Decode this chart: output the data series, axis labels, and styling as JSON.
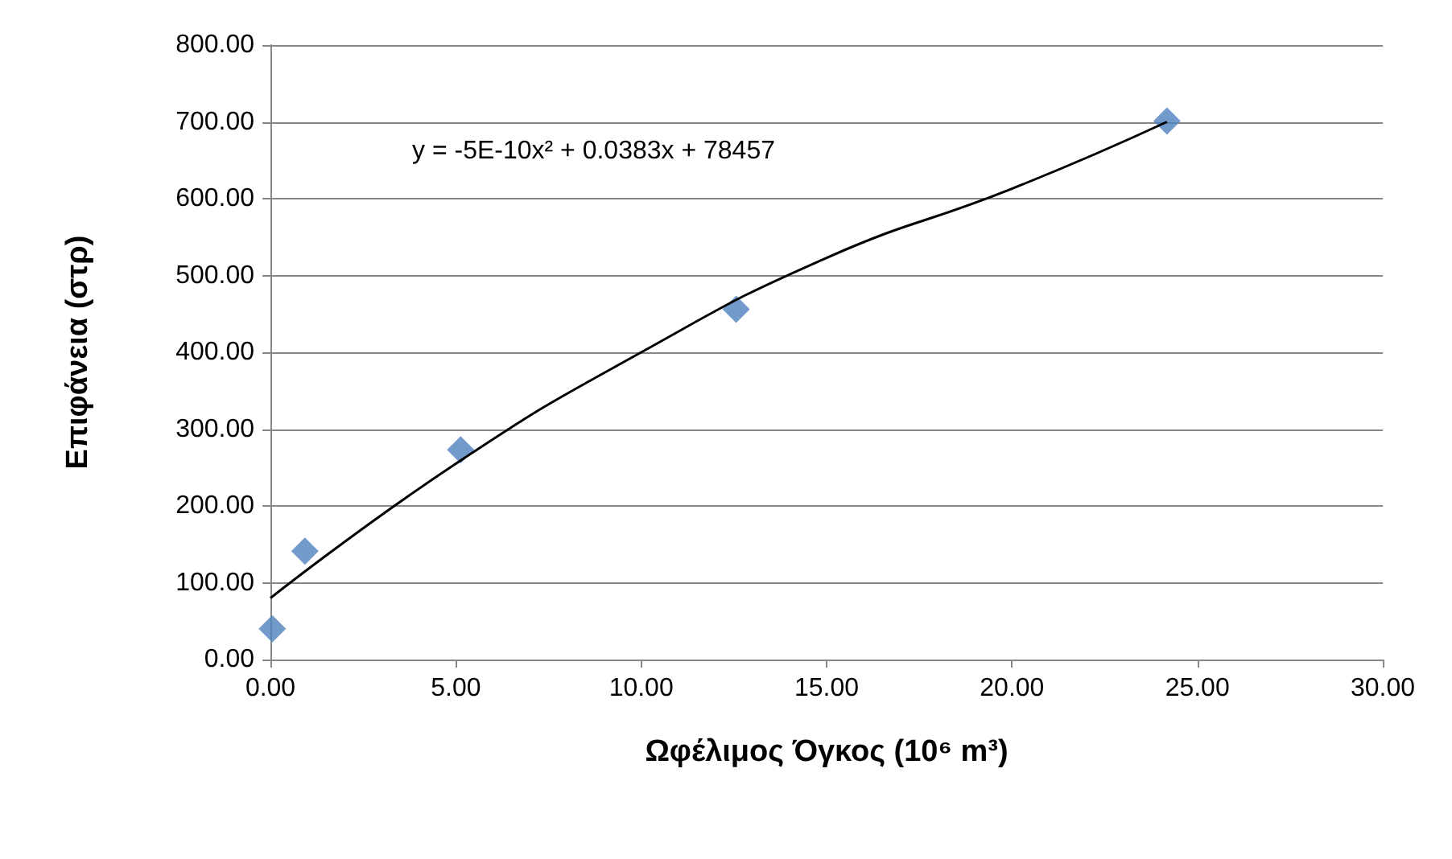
{
  "chart_data": {
    "type": "scatter",
    "xlabel": "Ωφέλιμος Όγκος (10⁶ m³)",
    "ylabel": "Επιφάνεια (στρ)",
    "annotations": [
      "y = -5E-10x² + 0.0383x + 78457"
    ],
    "x": [
      0.05,
      0.93,
      5.13,
      12.56,
      24.18
    ],
    "series": [
      {
        "color": "#4f81bd",
        "values": [
          40,
          141,
          273,
          456,
          701
        ],
        "marker": "diamond"
      },
      {
        "type": "line",
        "color": "#000000",
        "x": [
          0,
          5,
          10,
          15,
          20,
          24.18
        ],
        "values": [
          80,
          255,
          400,
          523,
          613,
          700
        ],
        "marker": "none"
      }
    ],
    "xlim": [
      0,
      30
    ],
    "xticks": [
      {
        "value": 0,
        "label": "0.00"
      },
      {
        "value": 5,
        "label": "5.00"
      },
      {
        "value": 10,
        "label": "10.00"
      },
      {
        "value": 15,
        "label": "15.00"
      },
      {
        "value": 20,
        "label": "20.00"
      },
      {
        "value": 25,
        "label": "25.00"
      },
      {
        "value": 30,
        "label": "30.00"
      }
    ],
    "ylim": [
      0,
      800
    ],
    "yticks": [
      {
        "value": 0,
        "label": "0.00"
      },
      {
        "value": 100,
        "label": "100.00"
      },
      {
        "value": 200,
        "label": "200.00"
      },
      {
        "value": 300,
        "label": "300.00"
      },
      {
        "value": 400,
        "label": "400.00"
      },
      {
        "value": 500,
        "label": "500.00"
      },
      {
        "value": 600,
        "label": "600.00"
      },
      {
        "value": 700,
        "label": "700.00"
      },
      {
        "value": 800,
        "label": "800.00"
      }
    ],
    "grid": "y"
  }
}
